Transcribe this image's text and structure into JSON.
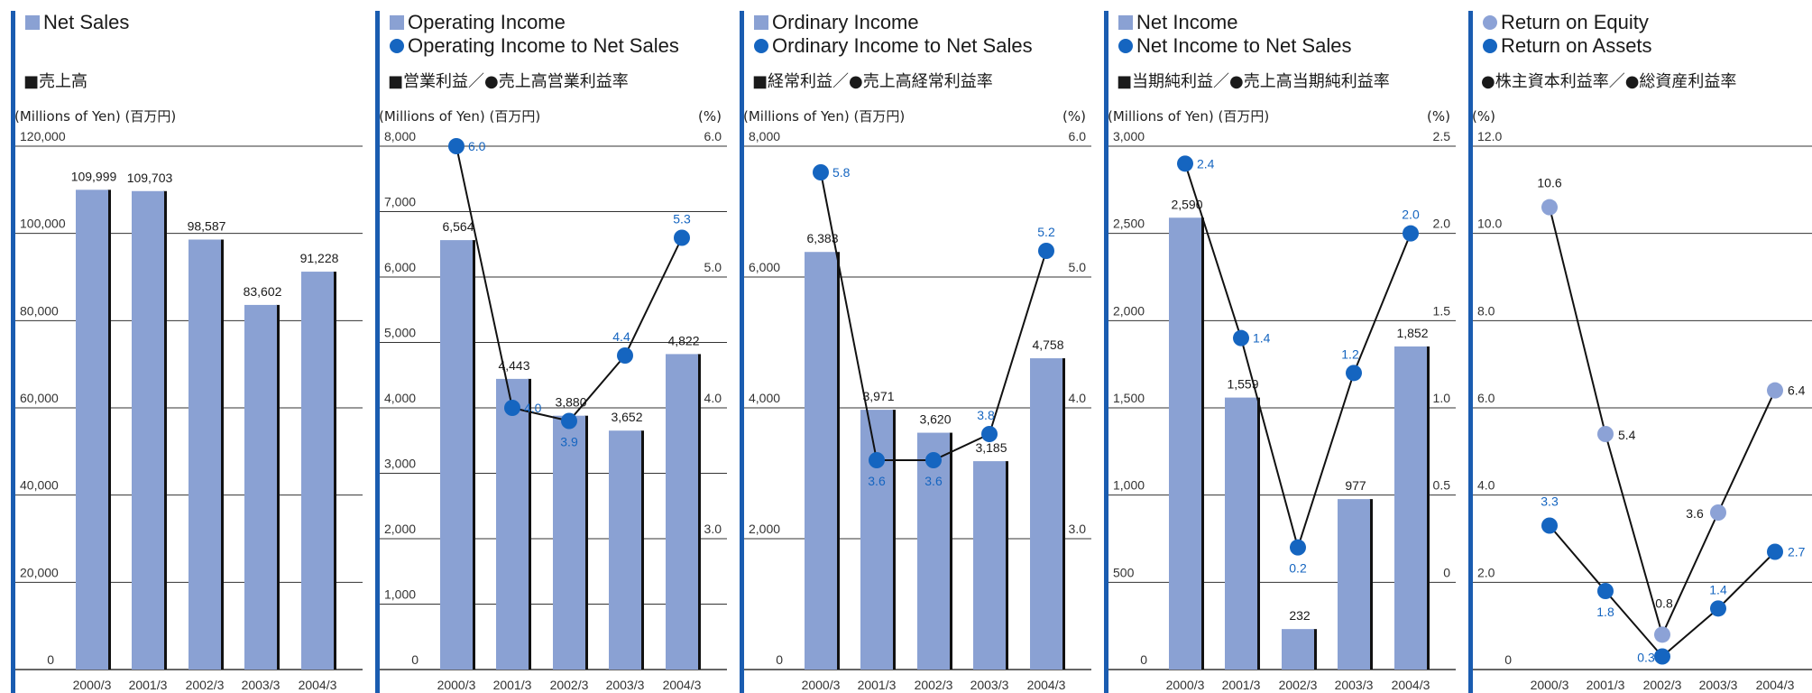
{
  "colors": {
    "bar": "#8aa1d3",
    "bar_shadow": "#111111",
    "accent_stripe": "#1a5cb0",
    "dot_dark": "#1565c0",
    "dot_light": "#8ca2d6",
    "gridline": "#333333",
    "label_blue": "#1565c0"
  },
  "x_categories": [
    "2000/3",
    "2001/3",
    "2002/3",
    "2003/3",
    "2004/3"
  ],
  "chart_data": [
    {
      "type": "bar",
      "legend": [
        {
          "marker": "square",
          "color": "#8aa1d3",
          "text": "Net Sales"
        }
      ],
      "jp_title": "■売上高",
      "unit_left": "(Millions of Yen) (百万円)",
      "unit_right": "",
      "categories": [
        "2000/3",
        "2001/3",
        "2002/3",
        "2003/3",
        "2004/3"
      ],
      "bars": {
        "values": [
          109999,
          109703,
          98587,
          83602,
          91228
        ],
        "labels": [
          "109,999",
          "109,703",
          "98,587",
          "83,602",
          "91,228"
        ]
      },
      "ylim": [
        0,
        120000
      ],
      "yticks": [
        0,
        20000,
        40000,
        60000,
        80000,
        100000,
        120000
      ],
      "ytick_labels": [
        "0",
        "20,000",
        "40,000",
        "60,000",
        "80,000",
        "100,000",
        "120,000"
      ]
    },
    {
      "type": "bar+line",
      "legend": [
        {
          "marker": "square",
          "color": "#8aa1d3",
          "text": "Operating Income"
        },
        {
          "marker": "circle",
          "color": "#1565c0",
          "text": "Operating Income to Net Sales"
        }
      ],
      "jp_title": "■営業利益／●売上高営業利益率",
      "unit_left": "(Millions of Yen) (百万円)",
      "unit_right": "(%)",
      "categories": [
        "2000/3",
        "2001/3",
        "2002/3",
        "2003/3",
        "2004/3"
      ],
      "bars": {
        "values": [
          6564,
          4443,
          3880,
          3652,
          4822
        ],
        "labels": [
          "6,564",
          "4,443",
          "3,880",
          "3,652",
          "4,822"
        ]
      },
      "line": {
        "values": [
          6.0,
          4.0,
          3.9,
          4.4,
          5.3
        ],
        "labels": [
          "6.0",
          "4.0",
          "3.9",
          "4.4",
          "5.3"
        ]
      },
      "ylim": [
        0,
        8000
      ],
      "yticks": [
        0,
        1000,
        2000,
        3000,
        4000,
        5000,
        6000,
        7000,
        8000
      ],
      "ytick_labels": [
        "0",
        "1,000",
        "2,000",
        "3,000",
        "4,000",
        "5,000",
        "6,000",
        "7,000",
        "8,000"
      ],
      "y2lim": [
        2.0,
        6.0
      ],
      "y2ticks": [
        3.0,
        4.0,
        5.0,
        6.0
      ],
      "y2tick_labels": [
        "3.0",
        "4.0",
        "5.0",
        "6.0"
      ]
    },
    {
      "type": "bar+line",
      "legend": [
        {
          "marker": "square",
          "color": "#8aa1d3",
          "text": "Ordinary Income"
        },
        {
          "marker": "circle",
          "color": "#1565c0",
          "text": "Ordinary Income to Net Sales"
        }
      ],
      "jp_title": "■経常利益／●売上高経常利益率",
      "unit_left": "(Millions of Yen) (百万円)",
      "unit_right": "(%)",
      "categories": [
        "2000/3",
        "2001/3",
        "2002/3",
        "2003/3",
        "2004/3"
      ],
      "bars": {
        "values": [
          6383,
          3971,
          3620,
          3185,
          4758
        ],
        "labels": [
          "6,383",
          "3,971",
          "3,620",
          "3,185",
          "4,758"
        ]
      },
      "line": {
        "values": [
          5.8,
          3.6,
          3.6,
          3.8,
          5.2
        ],
        "labels": [
          "5.8",
          "3.6",
          "3.6",
          "3.8",
          "5.2"
        ]
      },
      "ylim": [
        0,
        8000
      ],
      "yticks": [
        0,
        2000,
        4000,
        6000,
        8000
      ],
      "ytick_labels": [
        "0",
        "2,000",
        "4,000",
        "6,000",
        "8,000"
      ],
      "y2lim": [
        2.0,
        6.0
      ],
      "y2ticks": [
        3.0,
        4.0,
        5.0,
        6.0
      ],
      "y2tick_labels": [
        "3.0",
        "4.0",
        "5.0",
        "6.0"
      ]
    },
    {
      "type": "bar+line",
      "legend": [
        {
          "marker": "square",
          "color": "#8aa1d3",
          "text": "Net Income"
        },
        {
          "marker": "circle",
          "color": "#1565c0",
          "text": "Net Income to Net Sales"
        }
      ],
      "jp_title": "■当期純利益／●売上高当期純利益率",
      "unit_left": "(Millions of Yen) (百万円)",
      "unit_right": "(%)",
      "categories": [
        "2000/3",
        "2001/3",
        "2002/3",
        "2003/3",
        "2004/3"
      ],
      "bars": {
        "values": [
          2590,
          1559,
          232,
          977,
          1852
        ],
        "labels": [
          "2,590",
          "1,559",
          "232",
          "977",
          "1,852"
        ]
      },
      "line": {
        "values": [
          2.4,
          1.4,
          0.2,
          1.2,
          2.0
        ],
        "labels": [
          "2.4",
          "1.4",
          "0.2",
          "1.2",
          "2.0"
        ]
      },
      "ylim": [
        0,
        3000
      ],
      "yticks": [
        0,
        500,
        1000,
        1500,
        2000,
        2500,
        3000
      ],
      "ytick_labels": [
        "0",
        "500",
        "1,000",
        "1,500",
        "2,000",
        "2,500",
        "3,000"
      ],
      "y2lim": [
        -0.5,
        2.5
      ],
      "y2ticks": [
        0,
        0.5,
        1.0,
        1.5,
        2.0,
        2.5
      ],
      "y2tick_labels": [
        "0",
        "0.5",
        "1.0",
        "1.5",
        "2.0",
        "2.5"
      ]
    },
    {
      "type": "line",
      "legend": [
        {
          "marker": "circle",
          "color": "#8ca2d6",
          "text": "Return on Equity"
        },
        {
          "marker": "circle",
          "color": "#1565c0",
          "text": "Return on Assets"
        }
      ],
      "jp_title": "●株主資本利益率／●総資産利益率",
      "unit_left": "(%)",
      "unit_right": "",
      "categories": [
        "2000/3",
        "2001/3",
        "2002/3",
        "2003/3",
        "2004/3"
      ],
      "series": [
        {
          "name": "Return on Equity",
          "values": [
            10.6,
            5.4,
            0.8,
            3.6,
            6.4
          ],
          "labels": [
            "10.6",
            "5.4",
            "0.8",
            "3.6",
            "6.4"
          ]
        },
        {
          "name": "Return on Assets",
          "values": [
            3.3,
            1.8,
            0.3,
            1.4,
            2.7
          ],
          "labels": [
            "3.3",
            "1.8",
            "0.3",
            "1.4",
            "2.7"
          ]
        }
      ],
      "ylim": [
        0,
        12.0
      ],
      "yticks": [
        0,
        2.0,
        4.0,
        6.0,
        8.0,
        10.0,
        12.0
      ],
      "ytick_labels": [
        "0",
        "2.0",
        "4.0",
        "6.0",
        "8.0",
        "10.0",
        "12.0"
      ]
    }
  ]
}
